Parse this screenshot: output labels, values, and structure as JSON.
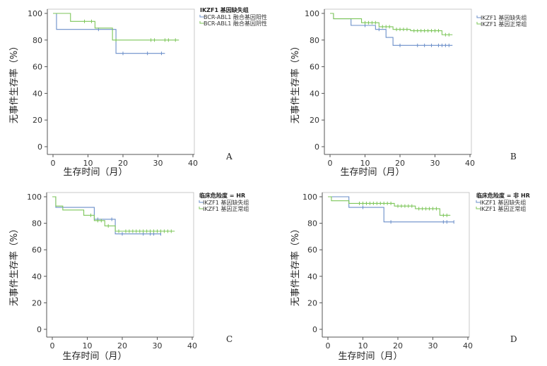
{
  "figure": {
    "colors": {
      "blue": "#6b8fc9",
      "green": "#7dc65a",
      "axis": "#555555"
    }
  },
  "chart_data": [
    {
      "type": "line",
      "panel": "A",
      "xlabel": "生存时间（月）",
      "ylabel": "无事件生存率（%）",
      "xlim": [
        0,
        40
      ],
      "ylim": [
        0,
        100
      ],
      "xticks": [
        0,
        10,
        20,
        30,
        40
      ],
      "yticks": [
        0,
        20,
        40,
        60,
        80,
        100
      ],
      "legend_title": "IKZF1 基因缺失组",
      "legend_placement": "top-right",
      "series": [
        {
          "name": "BCR-ABL1 融合基因阳性",
          "color": "blue",
          "x": [
            0,
            1,
            13,
            18,
            32
          ],
          "y": [
            100,
            88,
            88,
            70,
            70
          ],
          "censor": [
            13,
            20,
            27,
            31
          ]
        },
        {
          "name": "BCR-ABL1 融合基因阴性",
          "color": "green",
          "x": [
            0,
            5,
            12,
            17,
            36
          ],
          "y": [
            100,
            94,
            89,
            80,
            80
          ],
          "censor": [
            9,
            11,
            18,
            28,
            29,
            32,
            33,
            35
          ]
        }
      ]
    },
    {
      "type": "line",
      "panel": "B",
      "xlabel": "生存时间（月）",
      "ylabel": "无事件生存率（%）",
      "xlim": [
        0,
        40
      ],
      "ylim": [
        0,
        100
      ],
      "xticks": [
        0,
        10,
        20,
        30,
        40
      ],
      "yticks": [
        0,
        20,
        40,
        60,
        80,
        100
      ],
      "legend_title": "",
      "legend_placement": "top-right",
      "series": [
        {
          "name": "IKZF1 基因缺失组",
          "color": "blue",
          "x": [
            0,
            1,
            6,
            13,
            16,
            18,
            35
          ],
          "y": [
            100,
            96,
            91,
            88,
            82,
            76,
            76
          ],
          "censor": [
            10,
            14,
            20,
            25,
            27,
            29,
            31,
            32,
            33,
            34
          ]
        },
        {
          "name": "IKZF1 基因正常组",
          "color": "green",
          "x": [
            0,
            1,
            9,
            14,
            18,
            23,
            32,
            35
          ],
          "y": [
            100,
            96,
            93,
            90,
            88,
            87,
            84,
            84
          ],
          "censor": [
            10,
            11,
            12,
            13,
            15,
            16,
            17,
            19,
            20,
            21,
            22,
            24,
            25,
            26,
            27,
            28,
            29,
            30,
            31,
            33,
            34
          ]
        }
      ]
    },
    {
      "type": "line",
      "panel": "C",
      "xlabel": "生存时间（月）",
      "ylabel": "无事件生存率（%）",
      "xlim": [
        0,
        40
      ],
      "ylim": [
        0,
        100
      ],
      "xticks": [
        0,
        10,
        20,
        30,
        40
      ],
      "yticks": [
        0,
        20,
        40,
        60,
        80,
        100
      ],
      "legend_title": "临床危险度 = HR",
      "legend_placement": "top-right",
      "series": [
        {
          "name": "IKZF1 基因缺失组",
          "color": "blue",
          "x": [
            0,
            1,
            12,
            18,
            31
          ],
          "y": [
            100,
            92,
            83,
            72,
            72
          ],
          "censor": [
            13,
            17,
            20,
            26,
            28,
            29,
            31
          ]
        },
        {
          "name": "IKZF1 基因正常组",
          "color": "green",
          "x": [
            0,
            1,
            3,
            9,
            12,
            15,
            18,
            35
          ],
          "y": [
            100,
            93,
            90,
            86,
            82,
            78,
            74,
            74
          ],
          "censor": [
            11,
            13,
            14,
            16,
            19,
            21,
            22,
            23,
            24,
            25,
            26,
            27,
            28,
            29,
            30,
            31,
            32,
            33,
            34
          ]
        }
      ]
    },
    {
      "type": "line",
      "panel": "D",
      "xlabel": "生存时间（月）",
      "ylabel": "无事件生存率（%）",
      "xlim": [
        0,
        40
      ],
      "ylim": [
        0,
        100
      ],
      "xticks": [
        0,
        10,
        20,
        30,
        40
      ],
      "yticks": [
        0,
        20,
        40,
        60,
        80,
        100
      ],
      "legend_title": "临床危险度 = 非 HR",
      "legend_placement": "top-right",
      "series": [
        {
          "name": "IKZF1 基因缺失组",
          "color": "blue",
          "x": [
            0,
            6,
            16,
            36
          ],
          "y": [
            100,
            92,
            81,
            81
          ],
          "censor": [
            10,
            18,
            33,
            34,
            36
          ]
        },
        {
          "name": "IKZF1 基因正常组",
          "color": "green",
          "x": [
            0,
            1,
            6,
            19,
            25,
            32,
            35
          ],
          "y": [
            100,
            97,
            95,
            93,
            91,
            86,
            86
          ],
          "censor": [
            9,
            10,
            11,
            12,
            13,
            14,
            15,
            16,
            17,
            18,
            20,
            21,
            22,
            23,
            24,
            26,
            27,
            28,
            29,
            30,
            31,
            33,
            34
          ]
        }
      ]
    }
  ]
}
